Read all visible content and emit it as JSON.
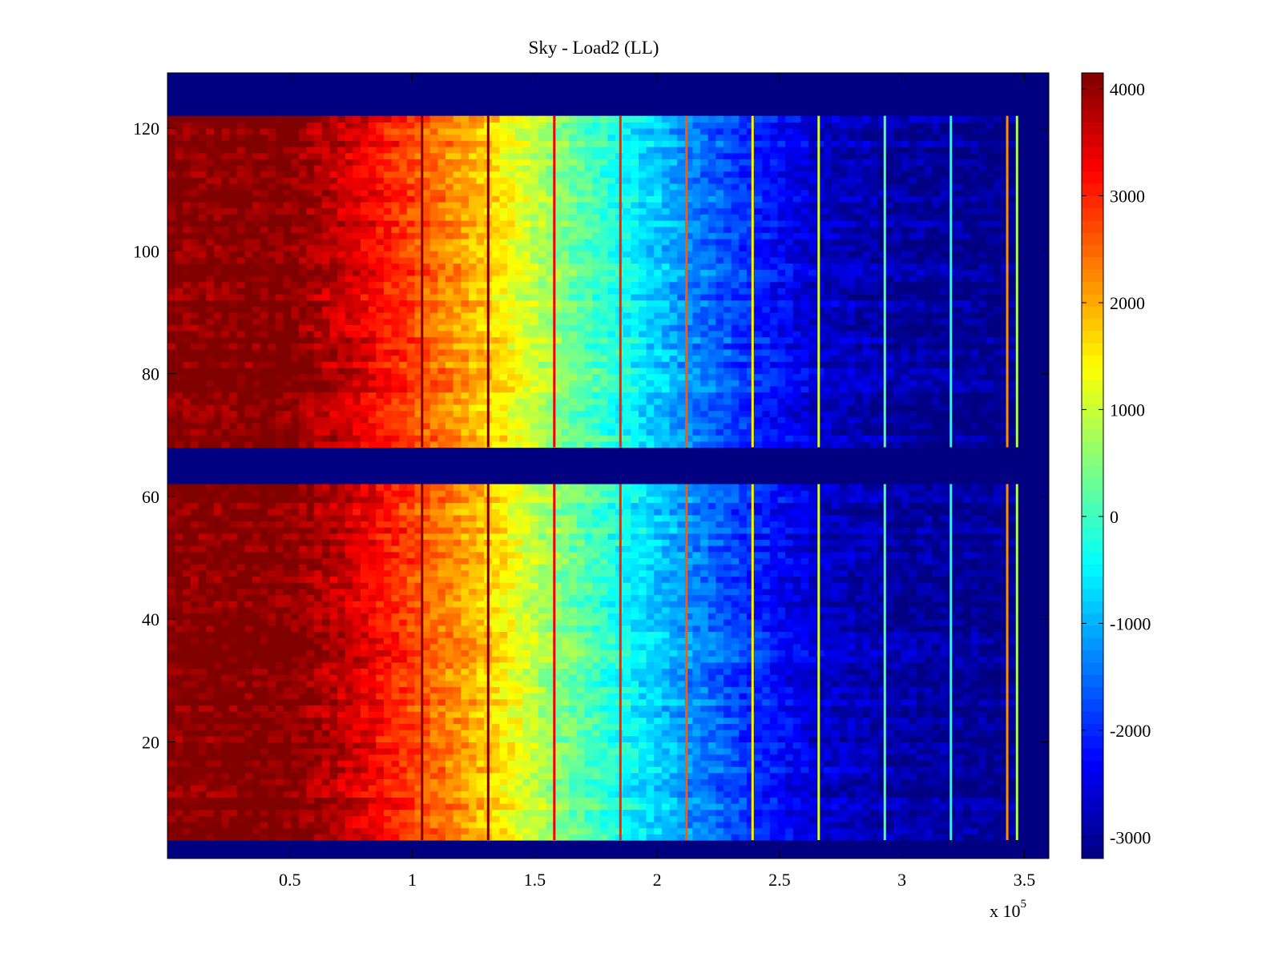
{
  "chart_data": {
    "type": "heatmap",
    "title": "Sky - Load2 (LL)",
    "xlabel": "",
    "ylabel": "",
    "x_multiplier_label": {
      "base": "x 10",
      "exponent": "5"
    },
    "xlim": [
      0,
      3.6
    ],
    "ylim": [
      1,
      129
    ],
    "x_ticks": [
      {
        "value": 0.5,
        "label": "0.5"
      },
      {
        "value": 1,
        "label": "1"
      },
      {
        "value": 1.5,
        "label": "1.5"
      },
      {
        "value": 2,
        "label": "2"
      },
      {
        "value": 2.5,
        "label": "2.5"
      },
      {
        "value": 3,
        "label": "3"
      },
      {
        "value": 3.5,
        "label": "3.5"
      }
    ],
    "y_ticks": [
      {
        "value": 20,
        "label": "20"
      },
      {
        "value": 40,
        "label": "40"
      },
      {
        "value": 60,
        "label": "60"
      },
      {
        "value": 80,
        "label": "80"
      },
      {
        "value": 100,
        "label": "100"
      },
      {
        "value": 120,
        "label": "120"
      }
    ],
    "colorbar": {
      "colormap": "jet",
      "clim": [
        -3200,
        4150
      ],
      "ticks": [
        {
          "value": 4000,
          "label": "4000"
        },
        {
          "value": 3000,
          "label": "3000"
        },
        {
          "value": 2000,
          "label": "2000"
        },
        {
          "value": 1000,
          "label": "1000"
        },
        {
          "value": 0,
          "label": "0"
        },
        {
          "value": -1000,
          "label": "-1000"
        },
        {
          "value": -2000,
          "label": "-2000"
        },
        {
          "value": -3000,
          "label": "-3000"
        }
      ]
    },
    "background_value": -3200,
    "row_blocks": [
      {
        "y_start": 4,
        "y_end": 62
      },
      {
        "y_start": 68,
        "y_end": 122
      }
    ],
    "column_profile": {
      "x": [
        0,
        0.5,
        0.78,
        1.05,
        1.3,
        1.58,
        1.85,
        2.12,
        2.4,
        2.66,
        2.93,
        3.2,
        3.47
      ],
      "values": [
        4150,
        4150,
        3500,
        2600,
        1800,
        600,
        -300,
        -1200,
        -2000,
        -2600,
        -2900,
        -3000,
        -3100
      ]
    },
    "streaks": [
      {
        "x": 1.04,
        "value": 4100
      },
      {
        "x": 1.31,
        "value": 4150
      },
      {
        "x": 1.58,
        "value": 3300
      },
      {
        "x": 1.85,
        "value": 3000
      },
      {
        "x": 2.12,
        "value": 2600
      },
      {
        "x": 2.39,
        "value": 1500
      },
      {
        "x": 2.66,
        "value": 1100
      },
      {
        "x": 2.93,
        "value": 200
      },
      {
        "x": 3.2,
        "value": -200
      },
      {
        "x": 3.43,
        "value": 2200
      },
      {
        "x": 3.47,
        "value": 800
      }
    ],
    "noise_amplitude": 650
  }
}
